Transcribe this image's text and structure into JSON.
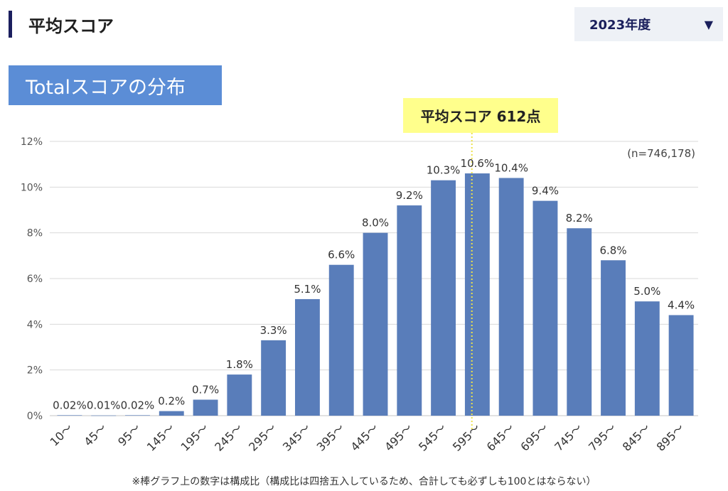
{
  "page": {
    "heading": "平均スコア",
    "year_select": {
      "value": "2023年度",
      "arrow": "▼",
      "arrow_icon": "caret-down-icon"
    }
  },
  "colors": {
    "accent_navy": "#1b1f5e",
    "bar": "#597dba",
    "title_box": "#5b8dd6",
    "average_box": "#ffff8c",
    "average_line": "#ece24a",
    "grid": "#d9d9d9"
  },
  "chart_data": {
    "type": "bar",
    "title": "Totalスコアの分布",
    "categories": [
      "10〜",
      "45〜",
      "95〜",
      "145〜",
      "195〜",
      "245〜",
      "295〜",
      "345〜",
      "395〜",
      "445〜",
      "495〜",
      "545〜",
      "595〜",
      "645〜",
      "695〜",
      "745〜",
      "795〜",
      "845〜",
      "895〜"
    ],
    "values": [
      0.02,
      0.01,
      0.02,
      0.2,
      0.7,
      1.8,
      3.3,
      5.1,
      6.6,
      8.0,
      9.2,
      10.3,
      10.6,
      10.4,
      9.4,
      8.2,
      6.8,
      5.0,
      4.4
    ],
    "value_labels": [
      "0.02%",
      "0.01%",
      "0.02%",
      "0.2%",
      "0.7%",
      "1.8%",
      "3.3%",
      "5.1%",
      "6.6%",
      "8.0%",
      "9.2%",
      "10.3%",
      "10.6%",
      "10.4%",
      "9.4%",
      "8.2%",
      "6.8%",
      "5.0%",
      "4.4%"
    ],
    "ylim": [
      0,
      12
    ],
    "yticks": [
      0,
      2,
      4,
      6,
      8,
      10,
      12
    ],
    "ytick_labels": [
      "0%",
      "2%",
      "4%",
      "6%",
      "8%",
      "10%",
      "12%"
    ],
    "grid": true,
    "sample_size_label": "(n=746,178)",
    "average": {
      "label": "平均スコア 612点",
      "score": 612
    },
    "footnote": "※棒グラフ上の数字は構成比（構成比は四捨五入しているため、合計しても必ずしも100とはならない）"
  }
}
